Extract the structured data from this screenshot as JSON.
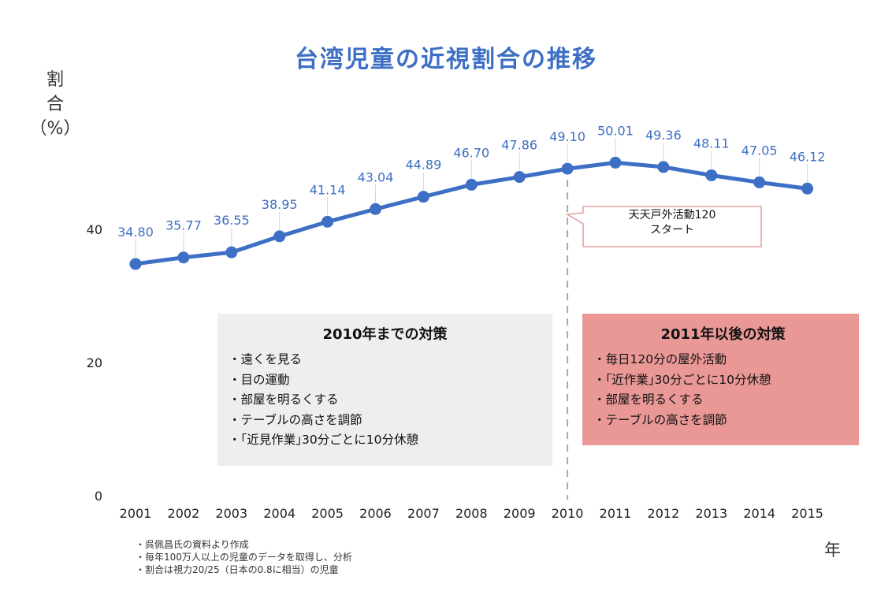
{
  "chart_data": {
    "type": "line",
    "title": "台湾児童の近視割合の推移",
    "ylabel": "割合（%）",
    "ylabel_parts": [
      "割",
      "合",
      "（%）"
    ],
    "xlabel": "年",
    "ylim": [
      0,
      55
    ],
    "yticks": [
      "0",
      "20",
      "40"
    ],
    "ytick_values": [
      0,
      20,
      40
    ],
    "grid": false,
    "x": [
      "2001",
      "2002",
      "2003",
      "2004",
      "2005",
      "2006",
      "2007",
      "2008",
      "2009",
      "2010",
      "2011",
      "2012",
      "2013",
      "2014",
      "2015"
    ],
    "values": [
      34.8,
      35.77,
      36.55,
      38.95,
      41.14,
      43.04,
      44.89,
      46.7,
      47.86,
      49.1,
      50.01,
      49.36,
      48.11,
      47.05,
      46.12
    ],
    "value_labels": [
      "34.80",
      "35.77",
      "36.55",
      "38.95",
      "41.14",
      "43.04",
      "44.89",
      "46.70",
      "47.86",
      "49.10",
      "50.01",
      "49.36",
      "48.11",
      "47.05",
      "46.12"
    ],
    "line_color": "#3d6fc4",
    "divider_year": "2010",
    "annotation": {
      "lines": [
        "天天戸外活動120",
        "スタート"
      ]
    }
  },
  "measures_before": {
    "title": "2010年までの対策",
    "items": [
      "・遠くを見る",
      "・目の運動",
      "・部屋を明るくする",
      "・テーブルの高さを調節",
      "・｢近見作業｣30分ごとに10分休憩"
    ],
    "background": "#eeeeee"
  },
  "measures_after": {
    "title": "2011年以後の対策",
    "items": [
      "・毎日120分の屋外活動",
      "・｢近作業｣30分ごとに10分休憩",
      "・部屋を明るくする",
      "・テーブルの高さを調節"
    ],
    "background": "#e99896"
  },
  "notes": [
    "・呉佩昌氏の資料より作成",
    "・毎年100万人以上の児童のデータを取得し、分析",
    "・割合は視力20/25（日本の0.8に相当）の児童"
  ]
}
